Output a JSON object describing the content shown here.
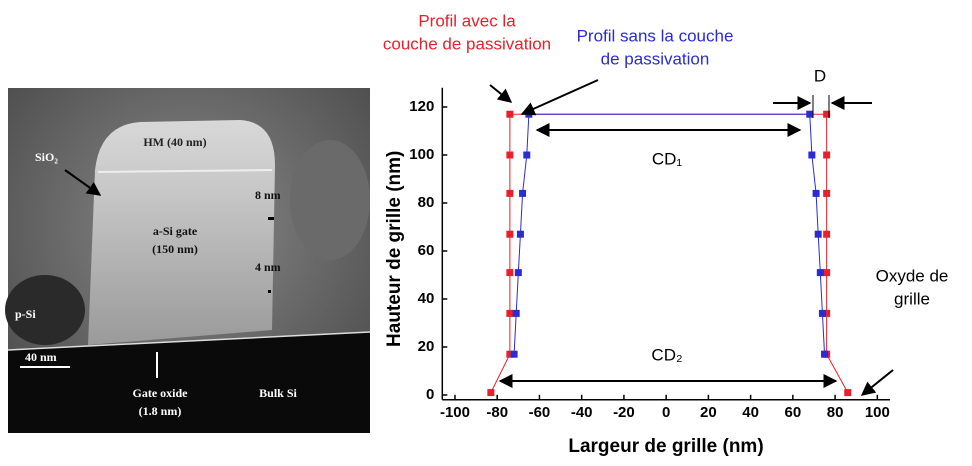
{
  "image": {
    "labels": {
      "hm": "HM (40 nm)",
      "sio2": "SiO₂",
      "n8": "8 nm",
      "gate1": "a-Si gate",
      "gate2": "(150 nm)",
      "n4": "4 nm",
      "psi": "p-Si",
      "scale": "40 nm",
      "ox1": "Gate oxide",
      "ox2": "(1.8 nm)",
      "bulk": "Bulk Si"
    }
  },
  "chart_data": {
    "type": "line",
    "x_label": "Largeur de grille (nm)",
    "y_label": "Hauteur de grille (nm)",
    "xlim": [
      -106,
      106
    ],
    "ylim": [
      -2,
      128
    ],
    "xticks": [
      -100,
      -80,
      -60,
      -40,
      -20,
      0,
      20,
      40,
      60,
      80,
      100
    ],
    "yticks": [
      0,
      20,
      40,
      60,
      80,
      100,
      120
    ],
    "series": [
      {
        "label": [
          "Profil avec la",
          "couche de passivation"
        ],
        "color": "#e8202a",
        "x": [
          -83,
          -74,
          -74,
          -74,
          -74,
          -74,
          -74,
          -74,
          76,
          76,
          76,
          76,
          76,
          76,
          76,
          86
        ],
        "y": [
          1,
          17,
          34,
          51,
          67,
          84,
          100,
          117,
          117,
          100,
          84,
          67,
          51,
          34,
          17,
          1
        ]
      },
      {
        "label": [
          "Profil sans la couche",
          "de passivation"
        ],
        "color": "#2b2bd6",
        "x": [
          -72,
          -71,
          -70,
          -69,
          -68,
          -66,
          -65,
          68,
          69,
          71,
          72,
          73,
          74,
          75
        ],
        "y": [
          17,
          34,
          51,
          67,
          84,
          100,
          117,
          117,
          100,
          84,
          67,
          51,
          34,
          17
        ]
      }
    ],
    "annotations": {
      "d": "D",
      "cd1": "CD₁",
      "cd2": "CD₂",
      "oxyde": [
        "Oxyde de",
        "grille"
      ]
    }
  }
}
